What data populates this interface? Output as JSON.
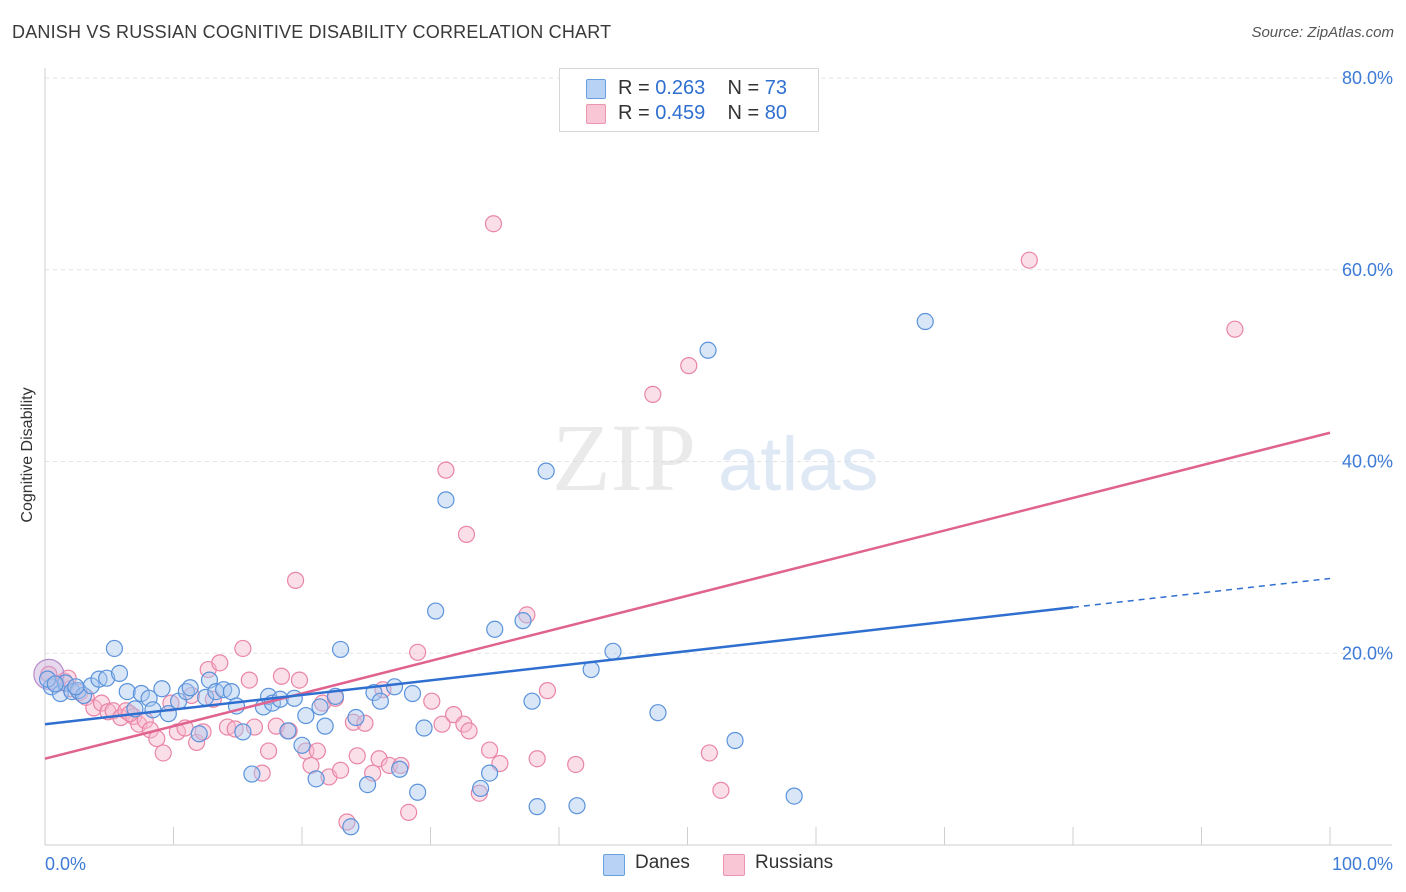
{
  "title": "DANISH VS RUSSIAN COGNITIVE DISABILITY CORRELATION CHART",
  "source": "Source: ZipAtlas.com",
  "watermark": {
    "zip": "ZIP",
    "atlas": "atlas"
  },
  "legend": {
    "danes": {
      "r_label": "R =",
      "r_value": "0.263",
      "n_label": "N =",
      "n_value": "73"
    },
    "russians": {
      "r_label": "R =",
      "r_value": "0.459",
      "n_label": "N =",
      "n_value": "80"
    }
  },
  "bottom_legend": {
    "danes": "Danes",
    "russians": "Russians"
  },
  "colors": {
    "danes_fill": "#a9c8f0",
    "danes_stroke": "#5b93db",
    "danes_line": "#2f6fd0",
    "russians_fill": "#f6b8cb",
    "russians_stroke": "#e985a6",
    "russians_line": "#e0628f",
    "tick": "#3d7bd6",
    "grid": "#e3e3e3"
  },
  "chart_data": {
    "type": "scatter",
    "title": "DANISH VS RUSSIAN COGNITIVE DISABILITY CORRELATION CHART",
    "xlabel": "",
    "ylabel": "Cognitive Disability",
    "xlim": [
      0,
      100
    ],
    "ylim": [
      0,
      80
    ],
    "x_tick_labels": [
      "0.0%",
      "100.0%"
    ],
    "y_ticks": [
      20,
      40,
      60,
      80
    ],
    "y_tick_labels": [
      "20.0%",
      "40.0%",
      "60.0%",
      "80.0%"
    ],
    "grid": true,
    "legend_position": "top-center",
    "series": [
      {
        "name": "Danes",
        "R": 0.263,
        "N": 73,
        "trend": {
          "x": [
            0,
            80
          ],
          "y": [
            12.6,
            24.8
          ],
          "dashed_extension": {
            "x": [
              80,
              100
            ],
            "y": [
              24.8,
              27.8
            ]
          }
        },
        "points": [
          [
            0.5,
            16.5
          ],
          [
            1.2,
            15.8
          ],
          [
            1.6,
            16.9
          ],
          [
            2.1,
            16.0
          ],
          [
            2.6,
            16.1
          ],
          [
            3.0,
            15.6
          ],
          [
            3.6,
            16.6
          ],
          [
            4.2,
            17.3
          ],
          [
            4.8,
            17.4
          ],
          [
            5.4,
            20.5
          ],
          [
            5.8,
            17.9
          ],
          [
            6.4,
            16.0
          ],
          [
            7.0,
            14.2
          ],
          [
            7.5,
            15.8
          ],
          [
            8.1,
            15.3
          ],
          [
            8.4,
            14.1
          ],
          [
            9.1,
            16.3
          ],
          [
            9.6,
            13.7
          ],
          [
            10.4,
            15.0
          ],
          [
            11.0,
            16.0
          ],
          [
            11.3,
            16.4
          ],
          [
            12.0,
            11.6
          ],
          [
            12.5,
            15.4
          ],
          [
            12.8,
            17.2
          ],
          [
            13.3,
            16.0
          ],
          [
            13.9,
            16.2
          ],
          [
            14.5,
            16.0
          ],
          [
            14.9,
            14.5
          ],
          [
            15.4,
            11.8
          ],
          [
            16.1,
            7.4
          ],
          [
            17.0,
            14.4
          ],
          [
            17.4,
            15.5
          ],
          [
            17.7,
            14.8
          ],
          [
            18.3,
            15.2
          ],
          [
            18.9,
            11.9
          ],
          [
            19.4,
            15.3
          ],
          [
            20.0,
            10.4
          ],
          [
            20.3,
            13.5
          ],
          [
            21.1,
            6.9
          ],
          [
            21.4,
            14.4
          ],
          [
            21.8,
            12.4
          ],
          [
            22.6,
            15.5
          ],
          [
            23.0,
            20.4
          ],
          [
            23.8,
            1.9
          ],
          [
            24.2,
            13.3
          ],
          [
            25.1,
            6.3
          ],
          [
            25.6,
            15.9
          ],
          [
            26.1,
            15.0
          ],
          [
            27.2,
            16.5
          ],
          [
            27.6,
            7.9
          ],
          [
            28.6,
            15.8
          ],
          [
            29.0,
            5.5
          ],
          [
            29.5,
            12.2
          ],
          [
            30.4,
            24.4
          ],
          [
            31.2,
            36.0
          ],
          [
            33.9,
            5.9
          ],
          [
            34.6,
            7.5
          ],
          [
            35.0,
            22.5
          ],
          [
            37.2,
            23.4
          ],
          [
            37.9,
            15.0
          ],
          [
            38.3,
            4.0
          ],
          [
            39.0,
            39.0
          ],
          [
            41.4,
            4.1
          ],
          [
            42.5,
            18.3
          ],
          [
            44.2,
            20.2
          ],
          [
            47.7,
            13.8
          ],
          [
            51.6,
            51.6
          ],
          [
            53.7,
            10.9
          ],
          [
            58.3,
            5.1
          ],
          [
            68.5,
            54.6
          ],
          [
            0.2,
            17.3
          ],
          [
            0.8,
            16.8
          ],
          [
            2.4,
            16.5
          ]
        ]
      },
      {
        "name": "Russians",
        "R": 0.459,
        "N": 80,
        "trend": {
          "x": [
            0,
            100
          ],
          "y": [
            9.0,
            43.0
          ]
        },
        "points": [
          [
            0.3,
            17.8
          ],
          [
            0.9,
            16.8
          ],
          [
            1.5,
            17.1
          ],
          [
            2.0,
            16.3
          ],
          [
            2.7,
            15.9
          ],
          [
            3.2,
            15.4
          ],
          [
            3.8,
            14.3
          ],
          [
            4.4,
            14.8
          ],
          [
            4.9,
            13.9
          ],
          [
            5.3,
            14.0
          ],
          [
            5.9,
            13.3
          ],
          [
            6.3,
            14.0
          ],
          [
            6.9,
            13.4
          ],
          [
            7.3,
            12.6
          ],
          [
            7.8,
            13.0
          ],
          [
            8.2,
            12.0
          ],
          [
            8.7,
            11.1
          ],
          [
            9.2,
            9.6
          ],
          [
            9.8,
            14.8
          ],
          [
            10.3,
            11.8
          ],
          [
            10.9,
            12.2
          ],
          [
            11.4,
            15.6
          ],
          [
            11.8,
            10.7
          ],
          [
            12.3,
            11.8
          ],
          [
            12.7,
            18.3
          ],
          [
            13.1,
            15.2
          ],
          [
            13.6,
            19.0
          ],
          [
            14.2,
            12.3
          ],
          [
            14.8,
            12.1
          ],
          [
            15.4,
            20.5
          ],
          [
            15.9,
            17.2
          ],
          [
            16.3,
            12.3
          ],
          [
            16.9,
            7.5
          ],
          [
            17.4,
            9.8
          ],
          [
            18.0,
            12.4
          ],
          [
            18.4,
            17.6
          ],
          [
            19.0,
            11.9
          ],
          [
            19.5,
            27.6
          ],
          [
            19.8,
            17.2
          ],
          [
            20.3,
            9.8
          ],
          [
            20.7,
            8.3
          ],
          [
            21.2,
            9.8
          ],
          [
            21.6,
            14.8
          ],
          [
            22.1,
            7.1
          ],
          [
            22.6,
            15.3
          ],
          [
            23.0,
            7.8
          ],
          [
            23.5,
            2.4
          ],
          [
            24.0,
            12.8
          ],
          [
            24.3,
            9.3
          ],
          [
            24.9,
            12.7
          ],
          [
            25.5,
            7.5
          ],
          [
            26.0,
            9.0
          ],
          [
            26.3,
            16.2
          ],
          [
            26.8,
            8.3
          ],
          [
            27.7,
            8.3
          ],
          [
            28.3,
            3.4
          ],
          [
            29.0,
            20.1
          ],
          [
            30.1,
            15.0
          ],
          [
            30.9,
            12.6
          ],
          [
            31.2,
            39.1
          ],
          [
            31.8,
            13.6
          ],
          [
            32.6,
            12.6
          ],
          [
            32.8,
            32.4
          ],
          [
            33.0,
            11.9
          ],
          [
            33.8,
            5.4
          ],
          [
            34.6,
            9.9
          ],
          [
            34.9,
            64.8
          ],
          [
            35.4,
            8.5
          ],
          [
            37.5,
            24.0
          ],
          [
            38.3,
            9.0
          ],
          [
            39.1,
            16.1
          ],
          [
            41.3,
            8.4
          ],
          [
            47.3,
            47.0
          ],
          [
            50.1,
            50.0
          ],
          [
            51.7,
            9.6
          ],
          [
            52.6,
            5.7
          ],
          [
            76.6,
            61.0
          ],
          [
            92.6,
            53.8
          ],
          [
            1.8,
            17.4
          ],
          [
            6.6,
            13.7
          ]
        ]
      }
    ]
  }
}
